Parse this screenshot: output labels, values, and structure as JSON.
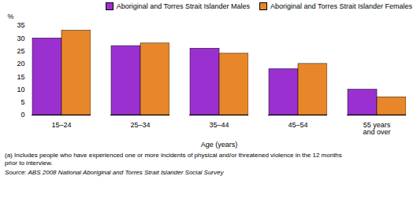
{
  "chart_data": {
    "type": "bar",
    "categories": [
      "15–24",
      "25–34",
      "35–44",
      "45–54",
      "55 years\nand over"
    ],
    "series": [
      {
        "name": "Aboriginal and Torres Strait Islander Males",
        "color": "#9B30D0",
        "values": [
          30,
          27,
          26,
          18,
          10
        ]
      },
      {
        "name": "Aboriginal and Torres Strait Islander Females",
        "color": "#E8872A",
        "values": [
          33,
          28,
          24,
          20,
          7
        ]
      }
    ],
    "xlabel": "Age (years)",
    "ylabel": "%",
    "ylim": [
      0,
      35
    ],
    "yticks": [
      0,
      5,
      10,
      15,
      20,
      25,
      30,
      35
    ],
    "grid": false,
    "legend": "upper right",
    "footnote": "(a) Includes people who have experienced one or more incidents of physical and/or threatened violence in the 12 months\n prior to interview.",
    "source": "Source: ABS 2008 National Aboriginal and Torres Strait Islander Social Survey"
  }
}
